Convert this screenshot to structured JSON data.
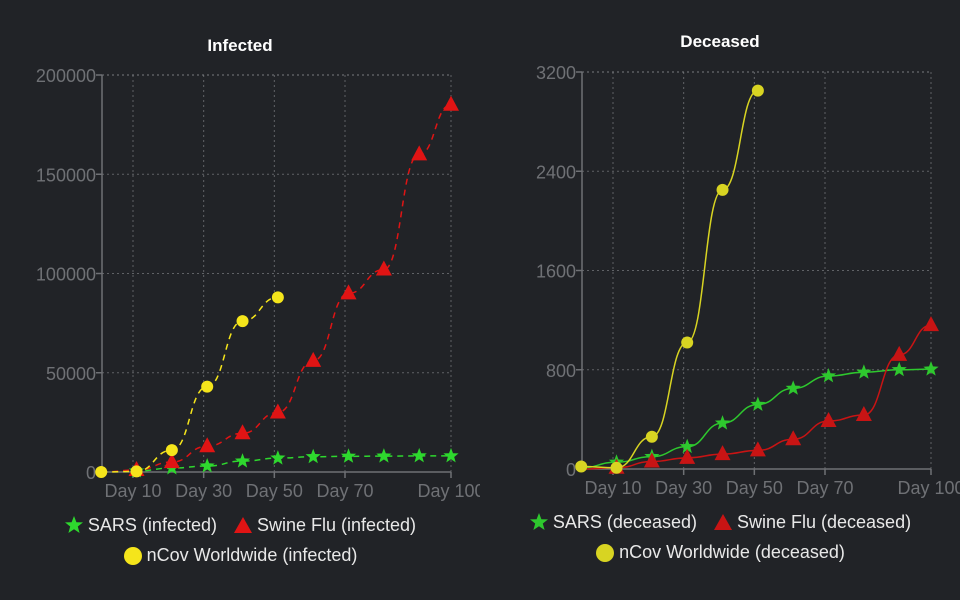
{
  "chart_data": [
    {
      "type": "line",
      "title": "Infected",
      "xlabel": "",
      "ylabel": "",
      "xlim": [
        1,
        100
      ],
      "ylim": [
        0,
        200000
      ],
      "grid": true,
      "legend_position": "bottom",
      "x_ticks": [
        {
          "value": 10,
          "label": "Day 10"
        },
        {
          "value": 30,
          "label": "Day 30"
        },
        {
          "value": 50,
          "label": "Day 50"
        },
        {
          "value": 70,
          "label": "Day 70"
        },
        {
          "value": 100,
          "label": "Day 100"
        }
      ],
      "y_ticks": [
        {
          "value": 0,
          "label": "0"
        },
        {
          "value": 50000,
          "label": "50000"
        },
        {
          "value": 100000,
          "label": "100000"
        },
        {
          "value": 150000,
          "label": "150000"
        },
        {
          "value": 200000,
          "label": "200000"
        }
      ],
      "line_style": "dashed",
      "series": [
        {
          "name": "SARS (infected)",
          "color": "#2ed82e",
          "marker": "star",
          "x": [
            1,
            11,
            21,
            31,
            41,
            51,
            61,
            71,
            81,
            91,
            100
          ],
          "values": [
            0,
            500,
            2000,
            3000,
            5500,
            7000,
            7700,
            7900,
            8000,
            8100,
            8100
          ]
        },
        {
          "name": "Swine Flu (infected)",
          "color": "#e01414",
          "marker": "triangle",
          "x": [
            1,
            11,
            21,
            31,
            41,
            51,
            61,
            71,
            81,
            91,
            100
          ],
          "values": [
            0,
            1000,
            5000,
            13000,
            19500,
            30000,
            56000,
            90000,
            102000,
            160000,
            185000
          ]
        },
        {
          "name": "nCov Worldwide (infected)",
          "color": "#f5e51b",
          "marker": "circle",
          "x": [
            1,
            11,
            21,
            31,
            41,
            51
          ],
          "values": [
            0,
            300,
            11000,
            43000,
            76000,
            88000
          ]
        }
      ]
    },
    {
      "type": "line",
      "title": "Deceased",
      "xlabel": "",
      "ylabel": "",
      "xlim": [
        1,
        100
      ],
      "ylim": [
        0,
        3200
      ],
      "grid": true,
      "legend_position": "bottom",
      "x_ticks": [
        {
          "value": 10,
          "label": "Day 10"
        },
        {
          "value": 30,
          "label": "Day 30"
        },
        {
          "value": 50,
          "label": "Day 50"
        },
        {
          "value": 70,
          "label": "Day 70"
        },
        {
          "value": 100,
          "label": "Day 100"
        }
      ],
      "y_ticks": [
        {
          "value": 0,
          "label": "0"
        },
        {
          "value": 800,
          "label": "800"
        },
        {
          "value": 1600,
          "label": "1600"
        },
        {
          "value": 2400,
          "label": "2400"
        },
        {
          "value": 3200,
          "label": "3200"
        }
      ],
      "line_style": "solid",
      "series": [
        {
          "name": "SARS (deceased)",
          "color": "#2ec82e",
          "marker": "star",
          "x": [
            1,
            11,
            21,
            31,
            41,
            51,
            61,
            71,
            81,
            91,
            100
          ],
          "values": [
            10,
            55,
            100,
            180,
            370,
            520,
            650,
            750,
            780,
            800,
            805
          ]
        },
        {
          "name": "Swine Flu (deceased)",
          "color": "#c81414",
          "marker": "triangle",
          "x": [
            1,
            11,
            21,
            31,
            41,
            51,
            61,
            71,
            81,
            91,
            100
          ],
          "values": [
            0,
            10,
            60,
            90,
            120,
            150,
            240,
            387,
            435,
            920,
            1160
          ]
        },
        {
          "name": "nCov Worldwide (deceased)",
          "color": "#d8d422",
          "marker": "circle",
          "x": [
            1,
            11,
            21,
            31,
            41,
            51
          ],
          "values": [
            20,
            10,
            260,
            1020,
            2250,
            3050
          ]
        }
      ]
    }
  ]
}
